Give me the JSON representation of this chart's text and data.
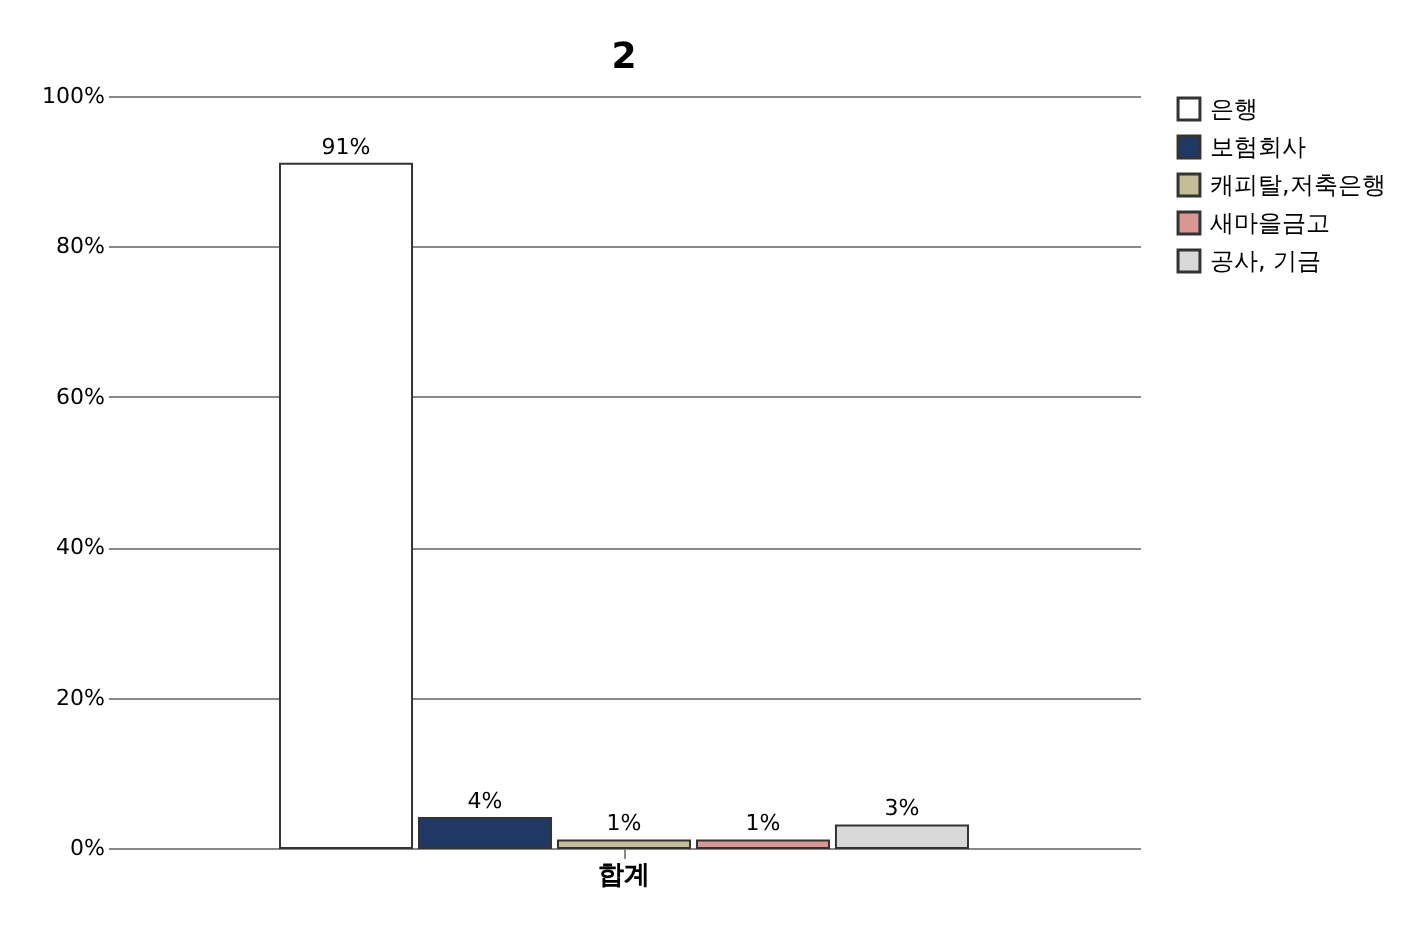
{
  "chart_data": {
    "type": "bar",
    "title": "2",
    "categories": [
      "합계"
    ],
    "series": [
      {
        "name": "은행",
        "color": "#ffffff",
        "values": [
          91
        ],
        "value_labels": [
          "91%"
        ]
      },
      {
        "name": "보험회사",
        "color": "#1f3864",
        "values": [
          4
        ],
        "value_labels": [
          "4%"
        ]
      },
      {
        "name": "캐피탈,저축은행",
        "color": "#c4bd97",
        "values": [
          1
        ],
        "value_labels": [
          "1%"
        ]
      },
      {
        "name": "새마을금고",
        "color": "#d99694",
        "values": [
          1
        ],
        "value_labels": [
          "1%"
        ]
      },
      {
        "name": "공사, 기금",
        "color": "#d9d9d9",
        "values": [
          3
        ],
        "value_labels": [
          "3%"
        ]
      }
    ],
    "ylim": [
      0,
      100
    ],
    "yticks": [
      {
        "value": 0,
        "label": "0%"
      },
      {
        "value": 20,
        "label": "20%"
      },
      {
        "value": 40,
        "label": "40%"
      },
      {
        "value": 60,
        "label": "60%"
      },
      {
        "value": 80,
        "label": "80%"
      },
      {
        "value": 100,
        "label": "100%"
      }
    ],
    "grid": "y",
    "legend": "right"
  }
}
